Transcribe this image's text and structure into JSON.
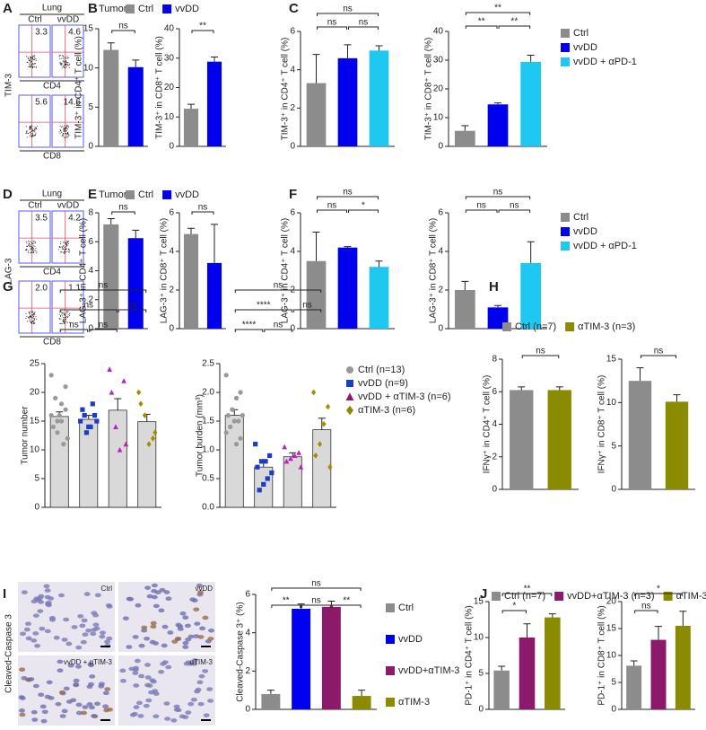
{
  "panels": [
    "A",
    "B",
    "C",
    "D",
    "E",
    "F",
    "G",
    "H",
    "I",
    "J"
  ],
  "flow_panels": [
    {
      "title": "Lung",
      "columns": [
        "Ctrl",
        "vvDD"
      ],
      "ylabel": "TIM-3",
      "row_labels": [
        "CD4",
        "CD8"
      ],
      "quadrant_values": [
        [
          "3.3",
          "4.6"
        ],
        [
          "5.6",
          "14.6"
        ]
      ]
    },
    {
      "title": "Lung",
      "columns": [
        "Ctrl",
        "vvDD"
      ],
      "ylabel": "LAG-3",
      "row_labels": [
        "CD4",
        "CD8"
      ],
      "quadrant_values": [
        [
          "3.5",
          "4.2"
        ],
        [
          "2.0",
          "1.1"
        ]
      ]
    }
  ],
  "ihc_panel": {
    "ylabel": "Cleaved-Caspase 3",
    "image_labels": [
      "Ctrl",
      "vvDD",
      "vvDD + αTIM-3",
      "αTIM-3"
    ]
  },
  "chart_data": [
    {
      "type": "bar",
      "ylabel": "TIM-3⁺ in CD4⁺ T cell (%)",
      "values": [
        12.3,
        10.1
      ],
      "errors": [
        0.9,
        0.9
      ],
      "colors": [
        "#8c8c8c",
        "#0000ee"
      ],
      "ylim": [
        0,
        15
      ],
      "yticks": [
        0,
        5,
        10,
        15
      ],
      "brackets": [
        {
          "between": [
            0,
            1
          ],
          "label": "ns"
        }
      ],
      "legend": {
        "title": "Tumor",
        "entries": [
          {
            "name": "Ctrl",
            "color": "#8c8c8c"
          },
          {
            "name": "vvDD",
            "color": "#0000ee"
          }
        ]
      }
    },
    {
      "type": "bar",
      "ylabel": "TIM-3⁺ in CD8⁺ T cell (%)",
      "values": [
        12.8,
        28.8
      ],
      "errors": [
        1.5,
        1.6
      ],
      "colors": [
        "#8c8c8c",
        "#0000ee"
      ],
      "ylim": [
        0,
        40
      ],
      "yticks": [
        0,
        10,
        20,
        30,
        40
      ],
      "brackets": [
        {
          "between": [
            0,
            1
          ],
          "label": "**"
        }
      ]
    },
    {
      "type": "bar",
      "ylabel": "TIM-3⁺ in CD4⁺ T cell (%)",
      "values": [
        3.3,
        4.6,
        5.0
      ],
      "errors": [
        1.5,
        0.7,
        0.25
      ],
      "colors": [
        "#8c8c8c",
        "#0000ee",
        "#1ec8f0"
      ],
      "ylim": [
        0,
        6
      ],
      "yticks": [
        0,
        2,
        4,
        6
      ],
      "brackets": [
        {
          "between": [
            0,
            1
          ],
          "label": "ns"
        },
        {
          "between": [
            1,
            2
          ],
          "label": "ns"
        },
        {
          "between": [
            0,
            2
          ],
          "label": "ns"
        }
      ]
    },
    {
      "type": "bar",
      "ylabel": "TIM-3⁺ in CD8⁺ T cell (%)",
      "values": [
        5.4,
        14.6,
        29.4
      ],
      "errors": [
        1.8,
        0.5,
        2.3
      ],
      "colors": [
        "#8c8c8c",
        "#0000ee",
        "#1ec8f0"
      ],
      "ylim": [
        0,
        40
      ],
      "yticks": [
        0,
        10,
        20,
        30,
        40
      ],
      "brackets": [
        {
          "between": [
            0,
            1
          ],
          "label": "**"
        },
        {
          "between": [
            1,
            2
          ],
          "label": "**"
        },
        {
          "between": [
            0,
            2
          ],
          "label": "**"
        }
      ],
      "legend": {
        "entries": [
          {
            "name": "Ctrl",
            "color": "#8c8c8c"
          },
          {
            "name": "vvDD",
            "color": "#0000ee"
          },
          {
            "name": "vvDD + αPD-1",
            "color": "#1ec8f0"
          }
        ]
      }
    },
    {
      "type": "bar",
      "ylabel": "LAG-3⁺ in CD4⁺ T cell (%)",
      "values": [
        7.2,
        6.25
      ],
      "errors": [
        0.4,
        0.55
      ],
      "colors": [
        "#8c8c8c",
        "#0000ee"
      ],
      "ylim": [
        0,
        8
      ],
      "yticks": [
        0,
        2,
        4,
        6,
        8
      ],
      "brackets": [
        {
          "between": [
            0,
            1
          ],
          "label": "ns"
        }
      ],
      "legend": {
        "title": "Tumor",
        "entries": [
          {
            "name": "Ctrl",
            "color": "#8c8c8c"
          },
          {
            "name": "vvDD",
            "color": "#0000ee"
          }
        ]
      }
    },
    {
      "type": "bar",
      "ylabel": "LAG-3⁺ in CD8⁺ T cell (%)",
      "values": [
        4.9,
        3.4
      ],
      "errors": [
        0.3,
        2.0
      ],
      "colors": [
        "#8c8c8c",
        "#0000ee"
      ],
      "ylim": [
        0,
        6
      ],
      "yticks": [
        0,
        2,
        4,
        6
      ],
      "brackets": [
        {
          "between": [
            0,
            1
          ],
          "label": "ns"
        }
      ]
    },
    {
      "type": "bar",
      "ylabel": "LAG-3⁺ in CD4⁺ T cell (%)",
      "values": [
        3.5,
        4.2,
        3.2
      ],
      "errors": [
        1.5,
        0.05,
        0.3
      ],
      "colors": [
        "#8c8c8c",
        "#0000ee",
        "#1ec8f0"
      ],
      "ylim": [
        0,
        6
      ],
      "yticks": [
        0,
        2,
        4,
        6
      ],
      "brackets": [
        {
          "between": [
            0,
            1
          ],
          "label": "ns"
        },
        {
          "between": [
            1,
            2
          ],
          "label": "*"
        },
        {
          "between": [
            0,
            2
          ],
          "label": "ns"
        }
      ]
    },
    {
      "type": "bar",
      "ylabel": "LAG-3⁺ in CD8⁺ T cell (%)",
      "values": [
        2.0,
        1.1,
        3.4
      ],
      "errors": [
        0.45,
        0.1,
        1.1
      ],
      "colors": [
        "#8c8c8c",
        "#0000ee",
        "#1ec8f0"
      ],
      "ylim": [
        0,
        6
      ],
      "yticks": [
        0,
        2,
        4,
        6
      ],
      "brackets": [
        {
          "between": [
            0,
            1
          ],
          "label": "ns"
        },
        {
          "between": [
            1,
            2
          ],
          "label": "ns"
        },
        {
          "between": [
            0,
            2
          ],
          "label": "ns"
        }
      ],
      "legend": {
        "entries": [
          {
            "name": "Ctrl",
            "color": "#8c8c8c"
          },
          {
            "name": "vvDD",
            "color": "#0000ee"
          },
          {
            "name": "vvDD + αPD-1",
            "color": "#1ec8f0"
          }
        ]
      }
    },
    {
      "type": "bar",
      "ylabel": "Tumor number",
      "values": [
        15.8,
        15.3,
        16.9,
        14.9
      ],
      "errors": [
        0.8,
        0.7,
        2.0,
        1.3
      ],
      "colors": [
        "#d9d9d9",
        "#d9d9d9",
        "#d9d9d9",
        "#d9d9d9"
      ],
      "ylim": [
        0,
        25
      ],
      "yticks": [
        0,
        5,
        10,
        15,
        20,
        25
      ],
      "points": [
        [
          16,
          17,
          18,
          15,
          14,
          12,
          11,
          16,
          19,
          23,
          21,
          15,
          13
        ],
        [
          15,
          16,
          14,
          13,
          17,
          15,
          18,
          14,
          16
        ],
        [
          24,
          22,
          10,
          14,
          20,
          11
        ],
        [
          20,
          12,
          11,
          16,
          18,
          13
        ]
      ],
      "point_colors": [
        "#999999",
        "#1a3cc8",
        "#c020c0",
        "#a09000"
      ],
      "point_markers": [
        "circle",
        "square",
        "triangle",
        "diamond"
      ],
      "brackets": [
        {
          "between": [
            0,
            1
          ],
          "label": "ns"
        },
        {
          "between": [
            1,
            2
          ],
          "label": "ns"
        },
        {
          "between": [
            0,
            2
          ],
          "label": "ns"
        },
        {
          "between": [
            2,
            3
          ],
          "label": "ns"
        },
        {
          "between": [
            0,
            3
          ],
          "label": "ns"
        }
      ]
    },
    {
      "type": "bar",
      "ylabel": "Tumor burden (mm³)",
      "values": [
        1.6,
        0.7,
        0.88,
        1.35
      ],
      "errors": [
        0.1,
        0.08,
        0.07,
        0.2
      ],
      "colors": [
        "#d9d9d9",
        "#d9d9d9",
        "#d9d9d9",
        "#d9d9d9"
      ],
      "ylim": [
        0,
        2.5
      ],
      "yticks": [
        {
          "value": 0,
          "label": "0.0"
        },
        0.5,
        {
          "value": 1,
          "label": "1.0"
        },
        1.5,
        {
          "value": 2,
          "label": "2.0"
        },
        2.5
      ],
      "points": [
        [
          2.3,
          2.0,
          1.9,
          1.7,
          1.6,
          1.6,
          1.5,
          1.5,
          1.4,
          1.3,
          1.2,
          1.1,
          1.7
        ],
        [
          1.1,
          0.9,
          0.8,
          0.8,
          0.7,
          0.6,
          0.5,
          0.4,
          0.3
        ],
        [
          1.05,
          0.95,
          0.9,
          0.85,
          0.8,
          0.7
        ],
        [
          2.0,
          1.75,
          1.45,
          1.1,
          0.9,
          0.7
        ]
      ],
      "point_colors": [
        "#999999",
        "#1a3cc8",
        "#c020c0",
        "#a09000"
      ],
      "point_markers": [
        "circle",
        "square",
        "triangle",
        "diamond"
      ],
      "brackets": [
        {
          "between": [
            0,
            1
          ],
          "label": "****"
        },
        {
          "between": [
            1,
            2
          ],
          "label": "ns"
        },
        {
          "between": [
            0,
            2
          ],
          "label": "****"
        },
        {
          "between": [
            2,
            3
          ],
          "label": "ns"
        },
        {
          "between": [
            0,
            3
          ],
          "label": "ns"
        }
      ],
      "legend": {
        "entries": [
          {
            "name": "Ctrl (n=13)",
            "color": "#999999",
            "marker": "circle"
          },
          {
            "name": "vvDD (n=9)",
            "color": "#1a3cc8",
            "marker": "square"
          },
          {
            "name": "vvDD + αTIM-3 (n=6)",
            "color": "#8b1a6b",
            "marker": "triangle"
          },
          {
            "name": "αTIM-3 (n=6)",
            "color": "#8b8b00",
            "marker": "diamond"
          }
        ]
      }
    },
    {
      "type": "bar",
      "ylabel": "IFNγ⁺ in CD4⁺ T cell (%)",
      "values": [
        6.1,
        6.1
      ],
      "errors": [
        0.2,
        0.2
      ],
      "colors": [
        "#8c8c8c",
        "#8b8b00"
      ],
      "ylim": [
        0,
        8
      ],
      "yticks": [
        0,
        2,
        4,
        6,
        8
      ],
      "brackets": [
        {
          "between": [
            0,
            1
          ],
          "label": "ns"
        }
      ],
      "legend": {
        "entries": [
          {
            "name": "Ctrl (n=7)",
            "color": "#8c8c8c"
          },
          {
            "name": "αTIM-3 (n=3)",
            "color": "#8b8b00"
          }
        ]
      }
    },
    {
      "type": "bar",
      "ylabel": "IFNγ⁺ in CD8⁺ T cell (%)",
      "values": [
        12.5,
        10.1
      ],
      "errors": [
        1.5,
        0.8
      ],
      "colors": [
        "#8c8c8c",
        "#8b8b00"
      ],
      "ylim": [
        0,
        15
      ],
      "yticks": [
        0,
        5,
        10,
        15
      ],
      "brackets": [
        {
          "between": [
            0,
            1
          ],
          "label": "ns"
        }
      ]
    },
    {
      "type": "bar",
      "ylabel": "Cleaved-Caspase 3⁺ (%)",
      "values": [
        0.8,
        5.25,
        5.35,
        0.7
      ],
      "errors": [
        0.2,
        0.25,
        0.3,
        0.3
      ],
      "colors": [
        "#8c8c8c",
        "#0000ee",
        "#8b1a6b",
        "#8b8b00"
      ],
      "ylim": [
        0,
        6
      ],
      "yticks": [
        0,
        2,
        4,
        6
      ],
      "brackets": [
        {
          "between": [
            0,
            1
          ],
          "label": "**"
        },
        {
          "between": [
            1,
            2
          ],
          "label": "ns"
        },
        {
          "between": [
            2,
            3
          ],
          "label": "**"
        },
        {
          "between": [
            0,
            3
          ],
          "label": "ns"
        }
      ],
      "legend": {
        "entries": [
          {
            "name": "Ctrl",
            "color": "#8c8c8c"
          },
          {
            "name": "vvDD",
            "color": "#0000ee"
          },
          {
            "name": "vvDD+αTIM-3",
            "color": "#8b1a6b"
          },
          {
            "name": "αTIM-3",
            "color": "#8b8b00"
          }
        ]
      }
    },
    {
      "type": "bar",
      "ylabel": "PD-1⁺ in CD4⁺ T cell (%)",
      "values": [
        5.4,
        10.0,
        12.8
      ],
      "errors": [
        0.6,
        1.9,
        0.5
      ],
      "colors": [
        "#8c8c8c",
        "#8b1a6b",
        "#8b8b00"
      ],
      "ylim": [
        0,
        15
      ],
      "yticks": [
        0,
        5,
        10,
        15
      ],
      "brackets": [
        {
          "between": [
            0,
            1
          ],
          "label": "*"
        },
        {
          "between": [
            0,
            2
          ],
          "label": "**"
        }
      ],
      "legend": {
        "entries": [
          {
            "name": "Ctrl (n=7)",
            "color": "#8c8c8c"
          },
          {
            "name": "vvDD+αTIM-3 (n=3)",
            "color": "#8b1a6b"
          },
          {
            "name": "αTIM-3 (n=3)",
            "color": "#8b8b00"
          }
        ]
      }
    },
    {
      "type": "bar",
      "ylabel": "PD-1⁺ in CD8⁺ T cell (%)",
      "values": [
        8.1,
        12.9,
        15.5
      ],
      "errors": [
        0.9,
        2.5,
        2.7
      ],
      "colors": [
        "#8c8c8c",
        "#8b1a6b",
        "#8b8b00"
      ],
      "ylim": [
        0,
        20
      ],
      "yticks": [
        0,
        5,
        10,
        15,
        20
      ],
      "brackets": [
        {
          "between": [
            0,
            1
          ],
          "label": "ns"
        },
        {
          "between": [
            0,
            2
          ],
          "label": "*"
        }
      ]
    }
  ]
}
